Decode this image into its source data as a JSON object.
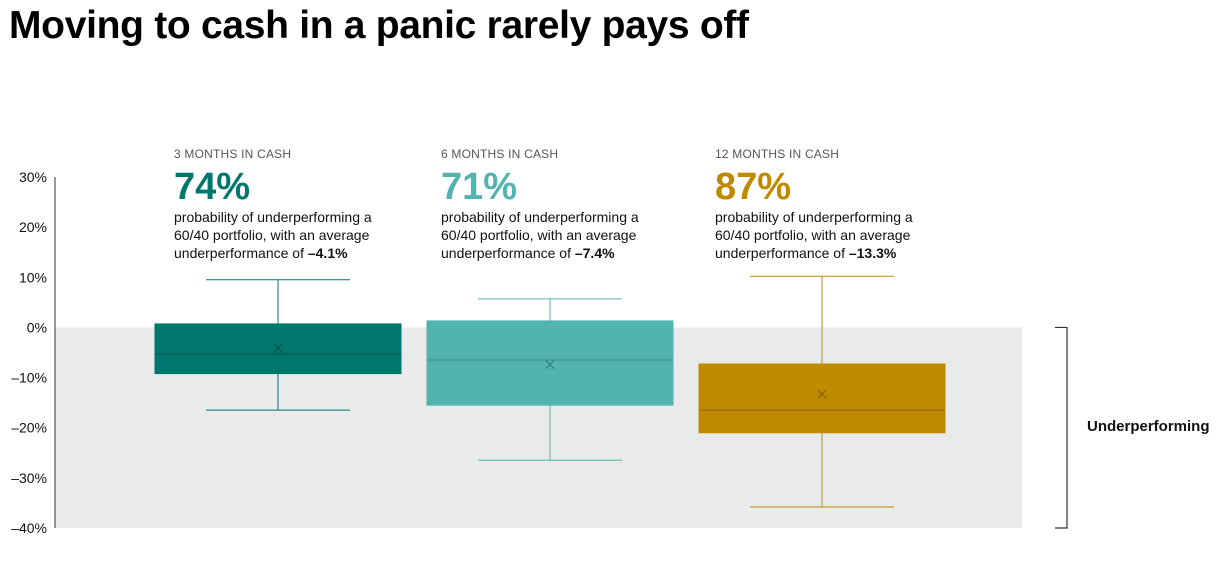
{
  "title": "Moving to cash in a panic rarely pays off",
  "chart_data": {
    "type": "box",
    "ylim": [
      -40,
      30
    ],
    "y_ticks": [
      "30%",
      "20%",
      "10%",
      "0%",
      "–10%",
      "–20%",
      "–30%",
      "–40%"
    ],
    "y_tick_values": [
      30,
      20,
      10,
      0,
      -10,
      -20,
      -30,
      -40
    ],
    "shaded_region": {
      "from": -40,
      "to": 0,
      "label": "Underperforming"
    },
    "series": [
      {
        "header": "3 MONTHS IN CASH",
        "probability": "74%",
        "desc_line1": "probability of underperforming a",
        "desc_line2": "60/40 portfolio, with an average",
        "desc_line3_prefix": "underperformance of ",
        "average": "–4.1%",
        "color": "#00766C",
        "whisker_high": 9.5,
        "q3": 0.7,
        "median": -5.3,
        "q1": -9.2,
        "whisker_low": -16.5,
        "mean": -4.1
      },
      {
        "header": "6 MONTHS IN CASH",
        "probability": "71%",
        "desc_line1": "probability of underperforming a",
        "desc_line2": "60/40 portfolio, with an average",
        "desc_line3_prefix": "underperformance of ",
        "average": "–7.4%",
        "color": "#52B4AE",
        "whisker_high": 5.7,
        "q3": 1.3,
        "median": -6.5,
        "q1": -15.5,
        "whisker_low": -26.5,
        "mean": -7.4
      },
      {
        "header": "12 MONTHS IN CASH",
        "probability": "87%",
        "desc_line1": "probability of underperforming a",
        "desc_line2": "60/40 portfolio, with an average",
        "desc_line3_prefix": "underperformance of ",
        "average": "–13.3%",
        "color": "#C08A00",
        "whisker_high": 10.2,
        "q3": -7.3,
        "median": -16.5,
        "q1": -21.0,
        "whisker_low": -35.8,
        "mean": -13.3
      }
    ]
  }
}
